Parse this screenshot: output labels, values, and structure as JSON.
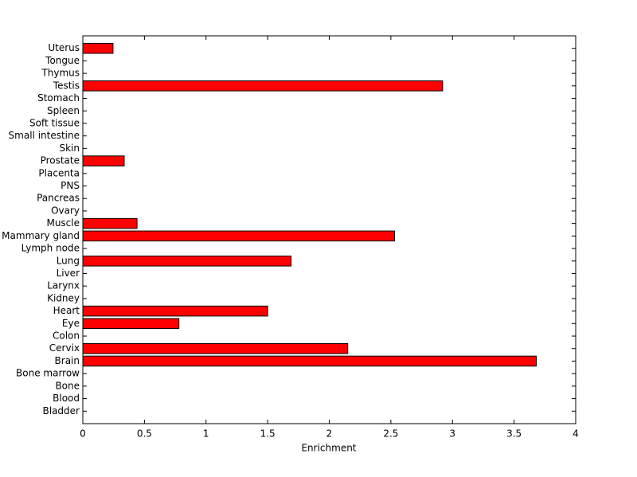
{
  "chart_data": {
    "type": "barh",
    "xlabel": "Enrichment",
    "categories": [
      "Bladder",
      "Blood",
      "Bone",
      "Bone marrow",
      "Brain",
      "Cervix",
      "Colon",
      "Eye",
      "Heart",
      "Kidney",
      "Larynx",
      "Liver",
      "Lung",
      "Lymph node",
      "Mammary gland",
      "Muscle",
      "Ovary",
      "Pancreas",
      "PNS",
      "Placenta",
      "Prostate",
      "Skin",
      "Small intestine",
      "Soft tissue",
      "Spleen",
      "Stomach",
      "Testis",
      "Thymus",
      "Tongue",
      "Uterus"
    ],
    "values": [
      0,
      0,
      0,
      0,
      3.68,
      2.15,
      0,
      0.78,
      1.5,
      0,
      0,
      0,
      1.69,
      0,
      2.53,
      0.44,
      0,
      0,
      0,
      0,
      0.336,
      0,
      0,
      0,
      0,
      0,
      2.92,
      0,
      0,
      0.245
    ],
    "color": "#ff0000",
    "xlim": [
      0,
      4
    ],
    "xticks": [
      0,
      0.5,
      1,
      1.5,
      2,
      2.5,
      3,
      3.5,
      4
    ]
  }
}
